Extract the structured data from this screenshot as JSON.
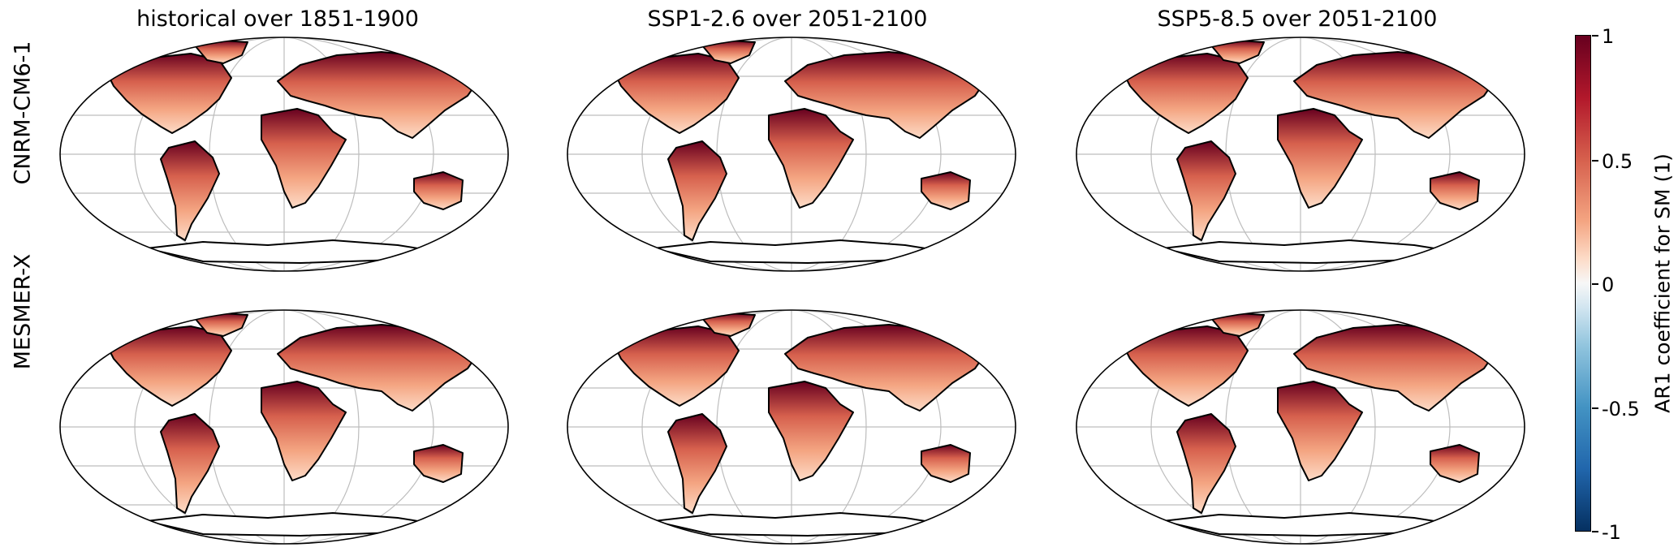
{
  "columns": [
    {
      "title": "historical over 1851-1900"
    },
    {
      "title": "SSP1-2.6 over 2051-2100"
    },
    {
      "title": "SSP5-8.5 over 2051-2100"
    }
  ],
  "rows": [
    {
      "label": "CNRM-CM6-1"
    },
    {
      "label": "MESMER-X"
    }
  ],
  "colorbar": {
    "title": "AR1 coefficient for SM (1)",
    "range": [
      -1,
      1
    ],
    "colormap": "RdBu_r",
    "ticks": [
      "1",
      "0.5",
      "0",
      "-0.5",
      "-1"
    ]
  },
  "colors": {
    "high": "#67001f",
    "mid_high": "#d6604d",
    "neutral": "#f7f7f7",
    "low": "#053061",
    "land_outline": "#000000",
    "gridline": "#bdbdbd"
  },
  "map": {
    "projection": "robinson",
    "gridlines": true
  }
}
